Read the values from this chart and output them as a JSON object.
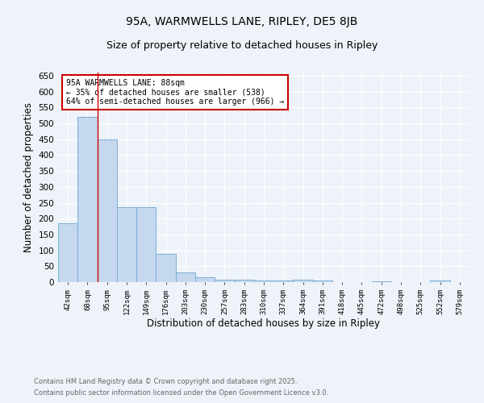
{
  "title": "95A, WARMWELLS LANE, RIPLEY, DE5 8JB",
  "subtitle": "Size of property relative to detached houses in Ripley",
  "xlabel": "Distribution of detached houses by size in Ripley",
  "ylabel": "Number of detached properties",
  "footnote1": "Contains HM Land Registry data © Crown copyright and database right 2025.",
  "footnote2": "Contains public sector information licensed under the Open Government Licence v3.0.",
  "categories": [
    "42sqm",
    "68sqm",
    "95sqm",
    "122sqm",
    "149sqm",
    "176sqm",
    "203sqm",
    "230sqm",
    "257sqm",
    "283sqm",
    "310sqm",
    "337sqm",
    "364sqm",
    "391sqm",
    "418sqm",
    "445sqm",
    "472sqm",
    "498sqm",
    "525sqm",
    "552sqm",
    "579sqm"
  ],
  "values": [
    185,
    520,
    450,
    235,
    235,
    88,
    30,
    15,
    8,
    8,
    5,
    5,
    8,
    5,
    0,
    0,
    3,
    0,
    0,
    5,
    0
  ],
  "bar_color": "#c5d8ee",
  "bar_edge_color": "#7aaed4",
  "red_line_x": 2,
  "annotation_text": "95A WARMWELLS LANE: 88sqm\n← 35% of detached houses are smaller (538)\n64% of semi-detached houses are larger (966) →",
  "annotation_box_color": "#ffffff",
  "annotation_box_edge_color": "#cc0000",
  "ylim": [
    0,
    660
  ],
  "yticks": [
    0,
    50,
    100,
    150,
    200,
    250,
    300,
    350,
    400,
    450,
    500,
    550,
    600,
    650
  ],
  "background_color": "#eef2f9",
  "title_fontsize": 10,
  "subtitle_fontsize": 9,
  "footnote_color": "#666666"
}
